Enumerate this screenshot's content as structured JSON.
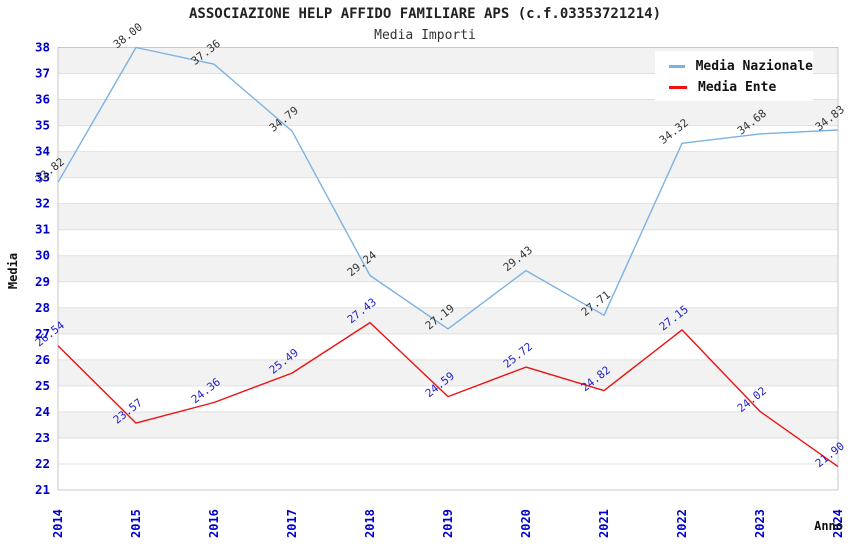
{
  "header": {
    "title": "ASSOCIAZIONE HELP AFFIDO FAMILIARE APS (c.f.03353721214)",
    "subtitle": "Media Importi"
  },
  "chart_data": {
    "type": "line",
    "title": "ASSOCIAZIONE HELP AFFIDO FAMILIARE APS (c.f.03353721214)",
    "subtitle": "Media Importi",
    "x": [
      2014,
      2015,
      2016,
      2017,
      2018,
      2019,
      2020,
      2021,
      2022,
      2023,
      2024
    ],
    "series": [
      {
        "name": "Media Nazionale",
        "color": "#7CB2E2",
        "label_color": "#333333",
        "values": [
          32.82,
          38.0,
          37.36,
          34.79,
          29.24,
          27.19,
          29.43,
          27.71,
          34.32,
          34.68,
          34.83
        ]
      },
      {
        "name": "Media Ente",
        "color": "#EE1111",
        "label_color": "#2222CC",
        "values": [
          26.54,
          23.57,
          24.36,
          25.49,
          27.43,
          24.59,
          25.72,
          24.82,
          27.15,
          24.02,
          21.9
        ]
      }
    ],
    "xlabel": "Anno",
    "ylabel": "Media",
    "ylim": [
      21,
      38
    ],
    "y_ticks": [
      21,
      22,
      23,
      24,
      25,
      26,
      27,
      28,
      29,
      30,
      31,
      32,
      33,
      34,
      35,
      36,
      37,
      38
    ],
    "grid": "horizontal-bands",
    "legend_position": "top-right",
    "colors": {
      "axis_tick": "#0000CC",
      "axis_title": "#111111",
      "band": "#F2F2F2",
      "gridline": "#E0E0E0",
      "border": "#C8C8C8",
      "background": "#FFFFFF"
    }
  }
}
